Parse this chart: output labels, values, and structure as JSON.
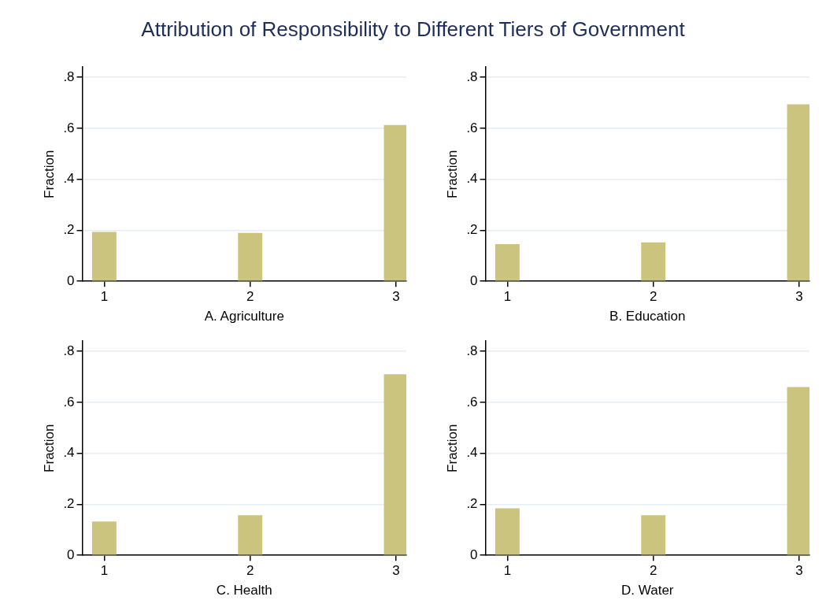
{
  "chart_data": [
    {
      "type": "bar",
      "title": "Attribution of Responsibility to Different Tiers of Government",
      "xlabel": "A. Agriculture",
      "ylabel": "Fraction",
      "x": [
        1,
        2,
        3
      ],
      "values": [
        0.194,
        0.19,
        0.613
      ],
      "color": "#cbc47e",
      "xlim": [
        0.85,
        3.07
      ],
      "xticks": [
        1,
        2,
        3
      ],
      "ylim": [
        0,
        0.84
      ],
      "yticks": [
        {
          "value": 0,
          "label": "0"
        },
        {
          "value": 0.2,
          "label": ".2"
        },
        {
          "value": 0.4,
          "label": ".4"
        },
        {
          "value": 0.6,
          "label": ".6"
        },
        {
          "value": 0.8,
          "label": ".8"
        }
      ],
      "grid": "y",
      "legend": false
    },
    {
      "type": "bar",
      "xlabel": "B. Education",
      "ylabel": "Fraction",
      "x": [
        1,
        2,
        3
      ],
      "values": [
        0.146,
        0.153,
        0.694
      ],
      "color": "#cbc47e",
      "xlim": [
        0.85,
        3.07
      ],
      "xticks": [
        1,
        2,
        3
      ],
      "ylim": [
        0,
        0.84
      ],
      "yticks": [
        {
          "value": 0,
          "label": "0"
        },
        {
          "value": 0.2,
          "label": ".2"
        },
        {
          "value": 0.4,
          "label": ".4"
        },
        {
          "value": 0.6,
          "label": ".6"
        },
        {
          "value": 0.8,
          "label": ".8"
        }
      ],
      "grid": "y",
      "legend": false
    },
    {
      "type": "bar",
      "xlabel": "C. Health",
      "ylabel": "Fraction",
      "x": [
        1,
        2,
        3
      ],
      "values": [
        0.133,
        0.157,
        0.71
      ],
      "color": "#cbc47e",
      "xlim": [
        0.85,
        3.07
      ],
      "xticks": [
        1,
        2,
        3
      ],
      "ylim": [
        0,
        0.84
      ],
      "yticks": [
        {
          "value": 0,
          "label": "0"
        },
        {
          "value": 0.2,
          "label": ".2"
        },
        {
          "value": 0.4,
          "label": ".4"
        },
        {
          "value": 0.6,
          "label": ".6"
        },
        {
          "value": 0.8,
          "label": ".8"
        }
      ],
      "grid": "y",
      "legend": false
    },
    {
      "type": "bar",
      "xlabel": "D. Water",
      "ylabel": "Fraction",
      "x": [
        1,
        2,
        3
      ],
      "values": [
        0.184,
        0.157,
        0.66
      ],
      "color": "#cbc47e",
      "xlim": [
        0.85,
        3.07
      ],
      "xticks": [
        1,
        2,
        3
      ],
      "ylim": [
        0,
        0.84
      ],
      "yticks": [
        {
          "value": 0,
          "label": "0"
        },
        {
          "value": 0.2,
          "label": ".2"
        },
        {
          "value": 0.4,
          "label": ".4"
        },
        {
          "value": 0.6,
          "label": ".6"
        },
        {
          "value": 0.8,
          "label": ".8"
        }
      ],
      "grid": "y",
      "legend": false
    }
  ]
}
